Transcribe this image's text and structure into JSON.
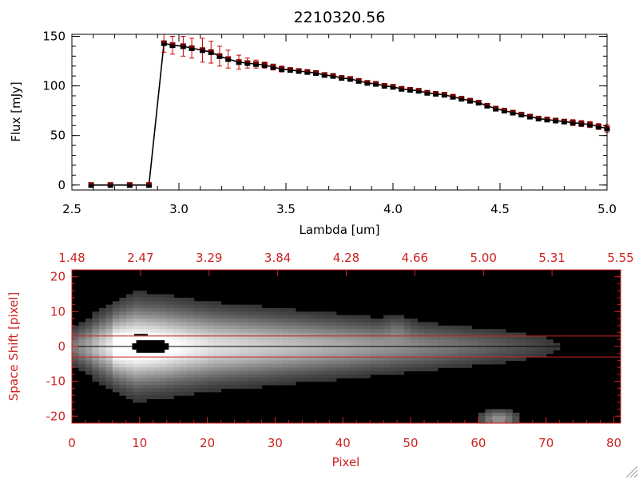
{
  "chart_data": [
    {
      "type": "line",
      "title": "2210320.56",
      "xlabel": "Lambda [um]",
      "ylabel": "Flux [mJy]",
      "xlim": [
        2.5,
        5.0
      ],
      "ylim": [
        -5,
        152
      ],
      "x_ticks": [
        "2.5",
        "3.0",
        "3.5",
        "4.0",
        "4.5",
        "5.0"
      ],
      "y_ticks": [
        "0",
        "50",
        "100",
        "150"
      ],
      "grid": false,
      "series": [
        {
          "x": [
            2.59,
            2.68,
            2.77,
            2.86,
            2.93,
            2.97,
            3.02,
            3.06,
            3.11,
            3.15,
            3.19,
            3.23,
            3.28,
            3.32,
            3.36,
            3.4,
            3.44,
            3.48,
            3.52,
            3.56,
            3.6,
            3.64,
            3.68,
            3.72,
            3.76,
            3.8,
            3.84,
            3.88,
            3.92,
            3.96,
            4.0,
            4.04,
            4.08,
            4.12,
            4.16,
            4.2,
            4.24,
            4.28,
            4.32,
            4.36,
            4.4,
            4.44,
            4.48,
            4.52,
            4.56,
            4.6,
            4.64,
            4.68,
            4.72,
            4.76,
            4.8,
            4.84,
            4.88,
            4.92,
            4.96,
            5.0
          ],
          "y": [
            0,
            0,
            0,
            0,
            143,
            141,
            140,
            138,
            136,
            134,
            130,
            127,
            124,
            123,
            122,
            121,
            119,
            117,
            116,
            115,
            114,
            113,
            111,
            110,
            108,
            107,
            105,
            103,
            102,
            100,
            99,
            97,
            96,
            95,
            93,
            92,
            91,
            89,
            87,
            85,
            83,
            80,
            77,
            75,
            73,
            71,
            69,
            67,
            66,
            65,
            64,
            63,
            62,
            61,
            59,
            57
          ],
          "err_y": [
            0,
            0,
            0,
            0,
            9,
            9,
            10,
            10,
            12,
            11,
            10,
            9,
            7,
            5,
            4,
            3,
            3,
            3,
            2,
            2,
            2,
            2,
            2,
            2,
            2,
            2,
            2,
            2,
            2,
            2,
            2,
            2,
            2,
            2,
            2,
            2,
            2,
            2,
            2,
            2,
            2,
            2,
            2,
            2,
            2,
            2,
            2,
            2,
            2,
            2,
            2,
            3,
            3,
            3,
            3,
            4
          ],
          "color": "#000000",
          "marker_color": "#000000",
          "error_color": "#cc0000"
        }
      ]
    },
    {
      "type": "heatmap",
      "xlabel": "Pixel",
      "ylabel": "Space Shift [pixel]",
      "xlim": [
        0,
        81
      ],
      "ylim": [
        -22,
        22
      ],
      "x_ticks": [
        "0",
        "10",
        "20",
        "30",
        "40",
        "50",
        "60",
        "70",
        "80"
      ],
      "y_ticks": [
        "-20",
        "-10",
        "0",
        "10",
        "20"
      ],
      "top_ticks": [
        "1.48",
        "2.47",
        "3.29",
        "3.84",
        "4.28",
        "4.66",
        "5.00",
        "5.31",
        "5.55"
      ],
      "colormap": "grayscale",
      "trace_center": 0,
      "aperture": [
        -3,
        3
      ],
      "axis_color": "#cc2222",
      "frame_color": "#cc2222"
    }
  ]
}
